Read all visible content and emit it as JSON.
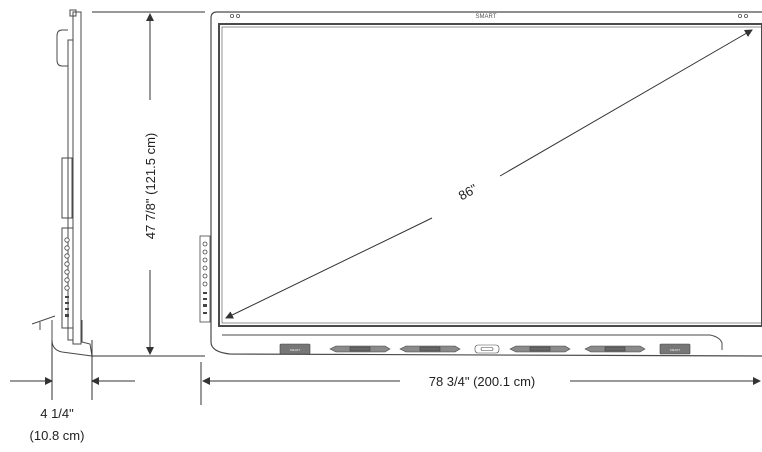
{
  "diagram": {
    "brand_logo": "SMART",
    "diagonal_label": "86\"",
    "height_label": "47 7/8\" (121.5 cm)",
    "width_label": "78 3/4\" (200.1 cm)",
    "depth_label_line1": "4 1/4\"",
    "depth_label_line2": "(10.8 cm)",
    "tray_buttons": [
      "SMART",
      "SMART"
    ],
    "colors": {
      "outline": "#4a4a4a",
      "pen_gray": "#6b6b6b",
      "button": "#777777",
      "text": "#222222"
    }
  }
}
